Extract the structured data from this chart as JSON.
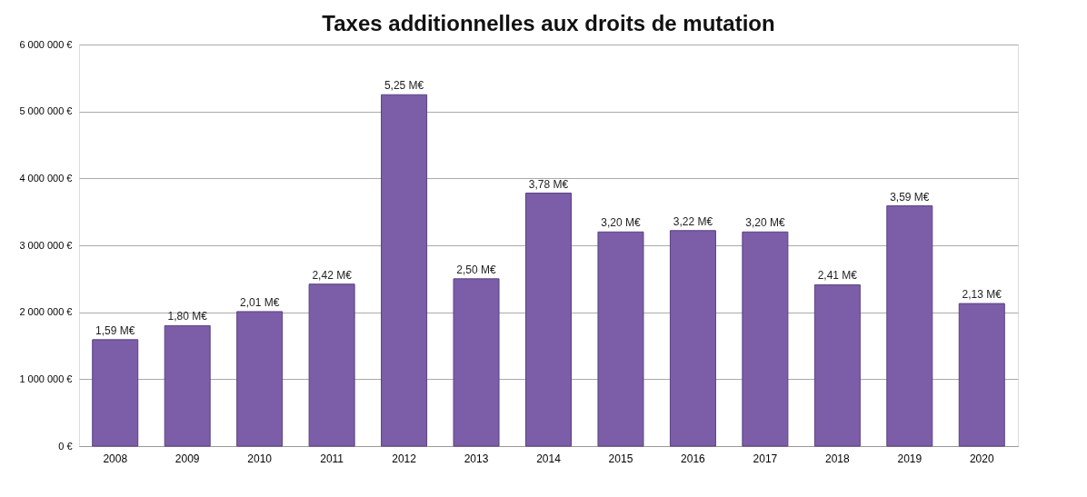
{
  "chart_data": {
    "type": "bar",
    "title": "Taxes additionnelles aux droits de mutation",
    "categories": [
      "2008",
      "2009",
      "2010",
      "2011",
      "2012",
      "2013",
      "2014",
      "2015",
      "2016",
      "2017",
      "2018",
      "2019",
      "2020"
    ],
    "values": [
      1590000,
      1800000,
      2010000,
      2420000,
      5250000,
      2500000,
      3780000,
      3200000,
      3220000,
      3200000,
      2410000,
      3590000,
      2130000
    ],
    "value_labels": [
      "1,59 M€",
      "1,80 M€",
      "2,01 M€",
      "2,42 M€",
      "5,25 M€",
      "2,50 M€",
      "3,78 M€",
      "3,20 M€",
      "3,22 M€",
      "3,20 M€",
      "2,41 M€",
      "3,59 M€",
      "2,13 M€"
    ],
    "color": "#7b5ea7",
    "ylim": [
      0,
      6000000
    ],
    "yticks": [
      {
        "value": 0,
        "label": "0 €"
      },
      {
        "value": 1000000,
        "label": "1 000 000 €"
      },
      {
        "value": 2000000,
        "label": "2 000 000 €"
      },
      {
        "value": 3000000,
        "label": "3 000 000 €"
      },
      {
        "value": 4000000,
        "label": "4 000 000 €"
      },
      {
        "value": 5000000,
        "label": "5 000 000 €"
      },
      {
        "value": 6000000,
        "label": "6 000 000 €"
      }
    ],
    "grid": "y"
  }
}
